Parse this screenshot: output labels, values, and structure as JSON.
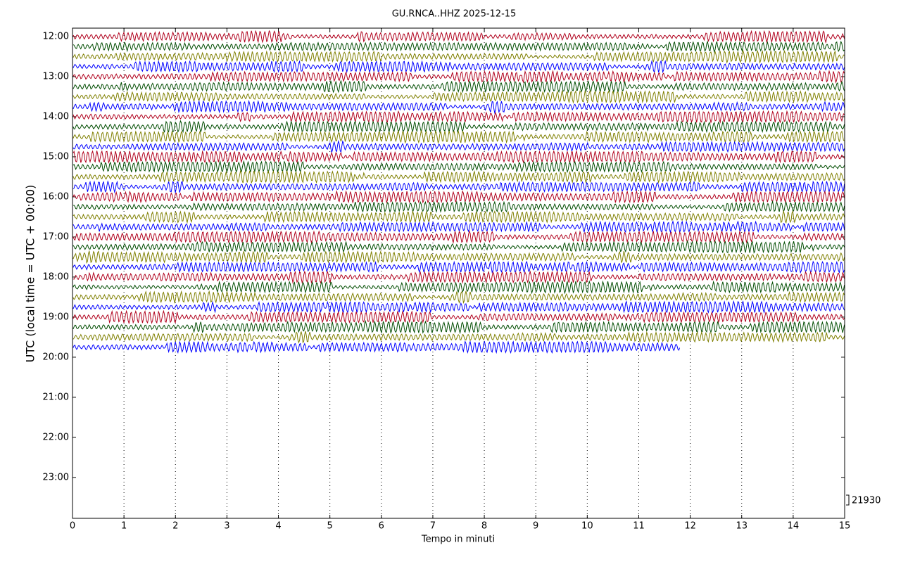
{
  "chart_data": {
    "type": "helicorder",
    "title": "GU.RNCA..HHZ 2025-12-15",
    "xlabel": "Tempo in minuti",
    "ylabel": "UTC (local time = UTC + 00:00)",
    "xlim": [
      0,
      15
    ],
    "xticks": [
      0,
      1,
      2,
      3,
      4,
      5,
      6,
      7,
      8,
      9,
      10,
      11,
      12,
      13,
      14,
      15
    ],
    "ylim": [
      24.02,
      11.79
    ],
    "yticks": [
      {
        "value": 12,
        "label": "12:00"
      },
      {
        "value": 13,
        "label": "13:00"
      },
      {
        "value": 14,
        "label": "14:00"
      },
      {
        "value": 15,
        "label": "15:00"
      },
      {
        "value": 16,
        "label": "16:00"
      },
      {
        "value": 17,
        "label": "17:00"
      },
      {
        "value": 18,
        "label": "18:00"
      },
      {
        "value": 19,
        "label": "19:00"
      },
      {
        "value": 20,
        "label": "20:00"
      },
      {
        "value": 21,
        "label": "21:00"
      },
      {
        "value": 22,
        "label": "22:00"
      },
      {
        "value": 23,
        "label": "23:00"
      }
    ],
    "grid": true,
    "scale_label": 21930,
    "traces": [
      {
        "start": 12.0,
        "end": 15,
        "color": "#b0001c"
      },
      {
        "start": 12.25,
        "end": 15,
        "color": "#004c00"
      },
      {
        "start": 12.5,
        "end": 15,
        "color": "#7f7f00"
      },
      {
        "start": 12.75,
        "end": 15,
        "color": "#0000ff"
      },
      {
        "start": 13.0,
        "end": 15,
        "color": "#b0001c"
      },
      {
        "start": 13.25,
        "end": 15,
        "color": "#004c00"
      },
      {
        "start": 13.5,
        "end": 15,
        "color": "#7f7f00"
      },
      {
        "start": 13.75,
        "end": 15,
        "color": "#0000ff"
      },
      {
        "start": 14.0,
        "end": 15,
        "color": "#b0001c"
      },
      {
        "start": 14.25,
        "end": 15,
        "color": "#004c00"
      },
      {
        "start": 14.5,
        "end": 15,
        "color": "#7f7f00"
      },
      {
        "start": 14.75,
        "end": 15,
        "color": "#0000ff"
      },
      {
        "start": 15.0,
        "end": 15,
        "color": "#b0001c"
      },
      {
        "start": 15.25,
        "end": 15,
        "color": "#004c00"
      },
      {
        "start": 15.5,
        "end": 15,
        "color": "#7f7f00"
      },
      {
        "start": 15.75,
        "end": 15,
        "color": "#0000ff"
      },
      {
        "start": 16.0,
        "end": 15,
        "color": "#b0001c"
      },
      {
        "start": 16.25,
        "end": 15,
        "color": "#004c00"
      },
      {
        "start": 16.5,
        "end": 15,
        "color": "#7f7f00"
      },
      {
        "start": 16.75,
        "end": 15,
        "color": "#0000ff"
      },
      {
        "start": 17.0,
        "end": 15,
        "color": "#b0001c"
      },
      {
        "start": 17.25,
        "end": 15,
        "color": "#004c00"
      },
      {
        "start": 17.5,
        "end": 15,
        "color": "#7f7f00"
      },
      {
        "start": 17.75,
        "end": 15,
        "color": "#0000ff"
      },
      {
        "start": 18.0,
        "end": 15,
        "color": "#b0001c"
      },
      {
        "start": 18.25,
        "end": 15,
        "color": "#004c00"
      },
      {
        "start": 18.5,
        "end": 15,
        "color": "#7f7f00"
      },
      {
        "start": 18.75,
        "end": 15,
        "color": "#0000ff"
      },
      {
        "start": 19.0,
        "end": 15,
        "color": "#b0001c"
      },
      {
        "start": 19.25,
        "end": 15,
        "color": "#004c00"
      },
      {
        "start": 19.5,
        "end": 15,
        "color": "#7f7f00"
      },
      {
        "start": 19.75,
        "end": 11.8,
        "color": "#0000ff"
      }
    ]
  }
}
